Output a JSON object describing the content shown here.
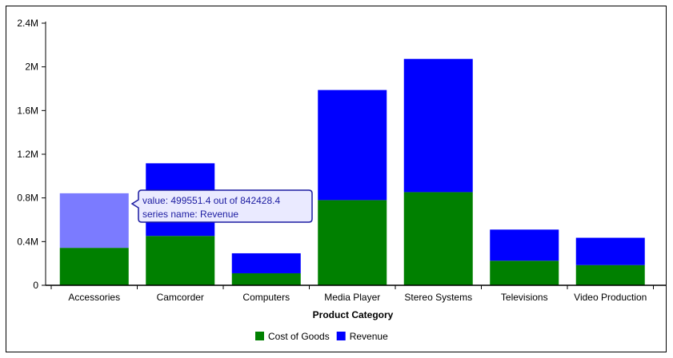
{
  "chart_data": {
    "type": "bar",
    "stacked": true,
    "categories": [
      "Accessories",
      "Camcorder",
      "Computers",
      "Media Player",
      "Stereo Systems",
      "Televisions",
      "Video Production"
    ],
    "series": [
      {
        "name": "Cost of Goods",
        "color": "#008000",
        "values": [
          342877,
          452000,
          110000,
          780000,
          853000,
          225000,
          185000
        ]
      },
      {
        "name": "Revenue",
        "color": "#0000ff",
        "values": [
          499551.4,
          665000,
          183000,
          1008000,
          1220000,
          285000,
          250000
        ]
      }
    ],
    "xlabel": "Product Category",
    "ylabel": "",
    "ylim": [
      0,
      2400000
    ],
    "yticks": [
      0,
      400000,
      800000,
      1200000,
      1600000,
      2000000,
      2400000
    ],
    "ytick_labels": [
      "0",
      "0.4M",
      "0.8M",
      "1.2M",
      "1.6M",
      "2M",
      "2.4M"
    ],
    "grid": false,
    "legend": "bottom",
    "highlight": {
      "category_index": 0,
      "series_index": 1,
      "color": "#7b7bff"
    }
  },
  "tooltip": {
    "line1": "value: 499551.4 out of 842428.4",
    "line2": "series name: Revenue"
  }
}
